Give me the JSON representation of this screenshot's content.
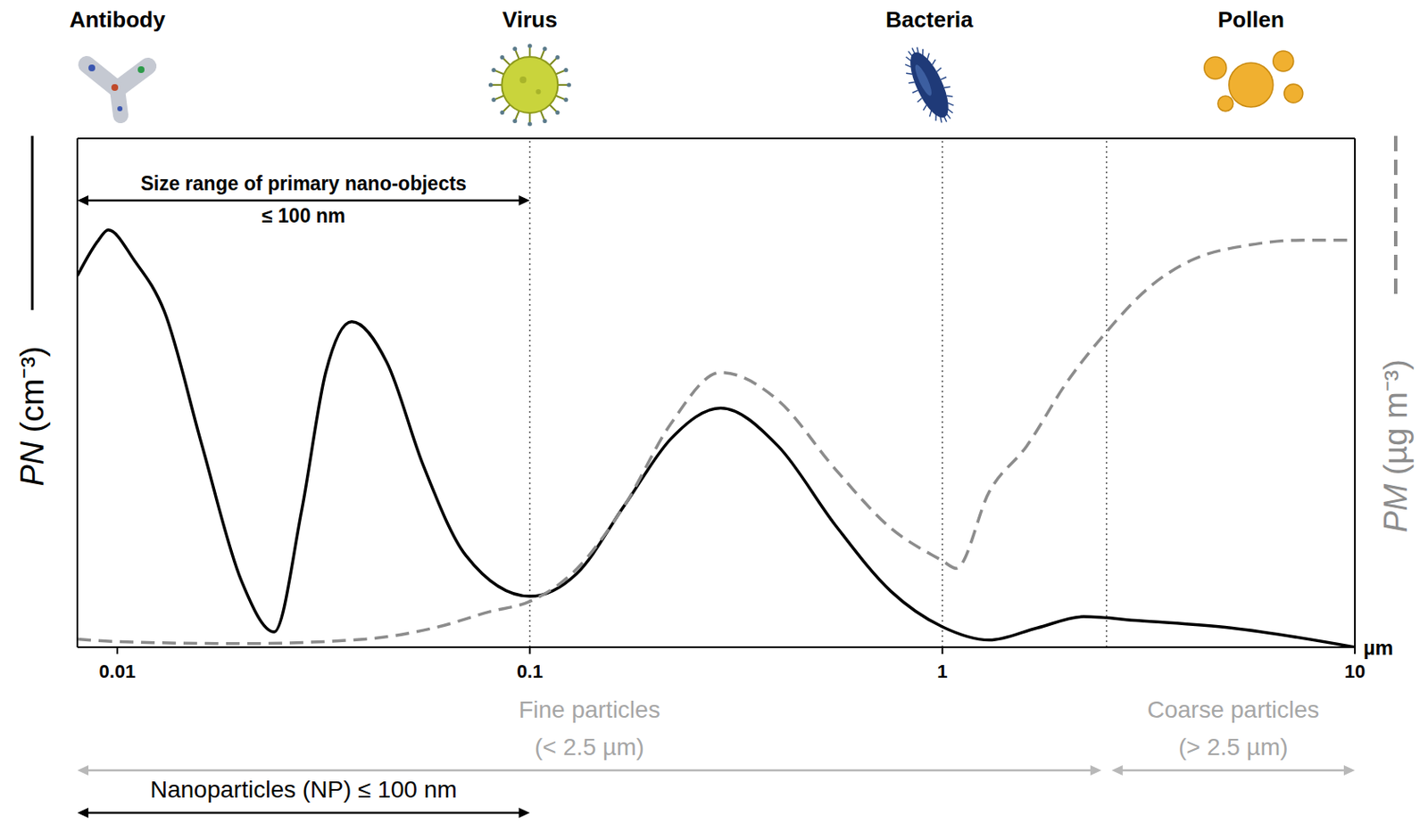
{
  "chart_data": {
    "type": "line",
    "log": "x",
    "xlabel": "µm",
    "ylabel": "PN (cm⁻³)",
    "y2label": "PM (µg m⁻³)",
    "xlim": [
      0.008,
      10
    ],
    "xticks": [
      0.01,
      0.1,
      1,
      10
    ],
    "ylim": [
      0,
      100
    ],
    "y2lim": [
      0,
      100
    ],
    "tick_labels": "x",
    "series": [
      {
        "axis": "y",
        "color": "#000000",
        "line_style": "solid",
        "x": [
          0.008,
          0.009,
          0.0095,
          0.011,
          0.013,
          0.016,
          0.02,
          0.024,
          0.028,
          0.032,
          0.037,
          0.045,
          0.055,
          0.07,
          0.1,
          0.13,
          0.17,
          0.22,
          0.29,
          0.4,
          0.55,
          0.75,
          1,
          1.3,
          1.7,
          2.2,
          3,
          5,
          10
        ],
        "values": [
          73,
          80,
          82,
          76,
          66,
          40,
          13,
          3,
          27,
          54,
          64,
          56,
          36,
          18,
          10,
          14.5,
          28,
          41,
          47,
          39.5,
          24,
          11,
          4,
          1.4,
          3.8,
          6,
          5.2,
          3.8,
          0
        ]
      },
      {
        "axis": "y2",
        "color": "#8c8c8c",
        "line_style": "dashed",
        "x": [
          0.008,
          0.01,
          0.02,
          0.04,
          0.06,
          0.08,
          0.1,
          0.13,
          0.17,
          0.22,
          0.29,
          0.4,
          0.55,
          0.75,
          1,
          1.08,
          1.3,
          1.6,
          2,
          2.5,
          3.2,
          4,
          5.5,
          7.5,
          10
        ],
        "values": [
          1.6,
          1.1,
          0.7,
          1.6,
          4,
          7,
          9,
          15.4,
          28,
          44,
          54,
          48.5,
          35,
          23.4,
          17,
          15.5,
          30.6,
          39.5,
          52,
          62,
          71,
          76,
          79,
          80,
          80
        ]
      }
    ],
    "reference_lines": [
      0.1,
      1,
      2.5
    ],
    "icons": [
      {
        "label": "Antibody",
        "x": 0.01
      },
      {
        "label": "Virus",
        "x": 0.1
      },
      {
        "label": "Bacteria",
        "x": 0.93
      },
      {
        "label": "Pollen",
        "x": 5.6
      }
    ],
    "size_range": {
      "text": "Size range of primary nano-objects",
      "subtext": "≤ 100 nm",
      "from": 0.008,
      "to": 0.1
    },
    "bands": [
      {
        "text": "Fine particles",
        "subtext": "(< 2.5 µm)",
        "from": 0.008,
        "to": 2.5
      },
      {
        "text": "Coarse particles",
        "subtext": "(> 2.5 µm)",
        "from": 2.5,
        "to": 10
      }
    ],
    "nanoparticles": {
      "text": "Nanoparticles (NP) ≤ 100 nm",
      "from": 0.008,
      "to": 0.1
    }
  }
}
